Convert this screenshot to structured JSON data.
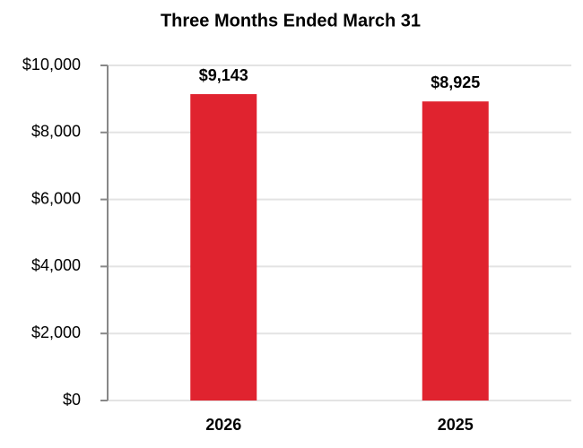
{
  "chart_data": {
    "type": "bar",
    "title": "Three Months Ended March 31",
    "categories": [
      "2026",
      "2025"
    ],
    "values": [
      9143,
      8925
    ],
    "value_labels": [
      "$9,143",
      "$8,925"
    ],
    "color": "#e0232f",
    "ylim": [
      0,
      10000
    ],
    "yticks": [
      {
        "value": 0,
        "label": "$0"
      },
      {
        "value": 2000,
        "label": "$2,000"
      },
      {
        "value": 4000,
        "label": "$4,000"
      },
      {
        "value": 6000,
        "label": "$6,000"
      },
      {
        "value": 8000,
        "label": "$8,000"
      },
      {
        "value": 10000,
        "label": "$10,000"
      }
    ],
    "grid": true
  }
}
